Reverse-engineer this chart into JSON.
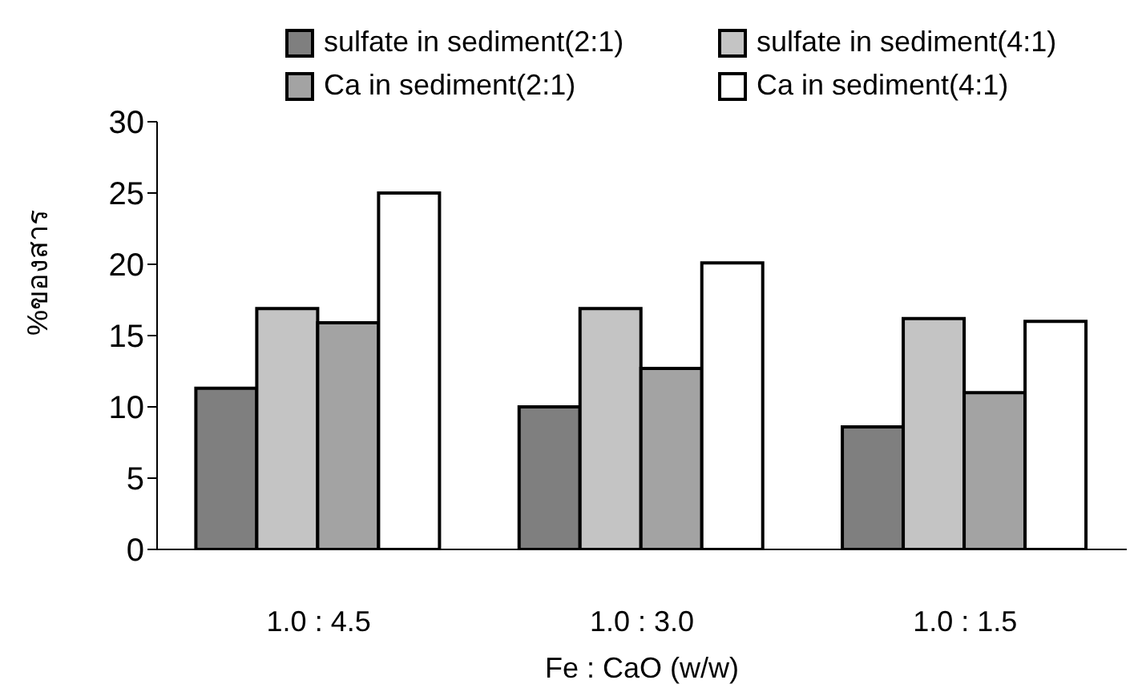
{
  "chart_data": {
    "type": "bar",
    "xlabel": "Fe : CaO (w/w)",
    "ylabel": "%ของสาร",
    "categories": [
      "1.0 : 4.5",
      "1.0 : 3.0",
      "1.0 : 1.5"
    ],
    "series": [
      {
        "name": "sulfate in sediment(2:1)",
        "color": "#7f7f7f",
        "values": [
          11.3,
          10.0,
          8.6
        ]
      },
      {
        "name": "sulfate in sediment(4:1)",
        "color": "#c4c4c4",
        "values": [
          16.9,
          16.9,
          16.2
        ]
      },
      {
        "name": "Ca in sediment(2:1)",
        "color": "#a3a3a3",
        "values": [
          15.9,
          12.7,
          11.0
        ]
      },
      {
        "name": "Ca in sediment(4:1)",
        "color": "#ffffff",
        "values": [
          25,
          20.1,
          16.0
        ]
      }
    ],
    "ylim": [
      0,
      30
    ],
    "yticks": [
      0,
      5,
      10,
      15,
      20,
      25,
      30
    ],
    "grid": false,
    "legend": "top"
  }
}
